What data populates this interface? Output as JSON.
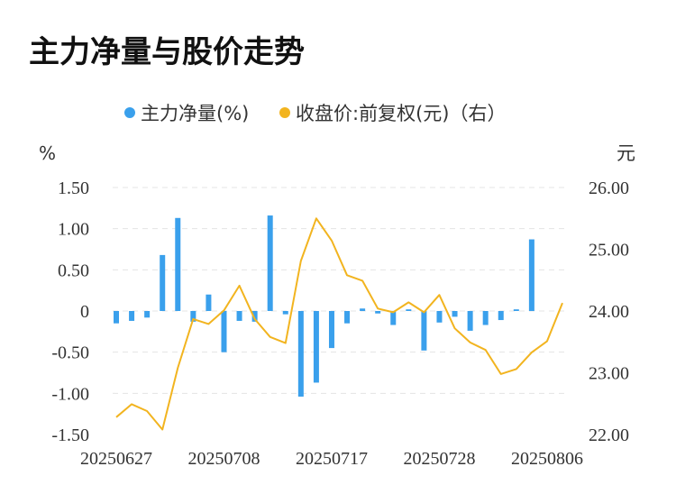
{
  "chart_data": {
    "type": "bar+line",
    "title": "主力净量与股价走势",
    "legend": {
      "placement": "top-center",
      "items": [
        {
          "label": "主力净量(%)",
          "color": "#3aa0ec"
        },
        {
          "label": "收盘价:前复权(元)（右）",
          "color": "#f2b41f"
        }
      ]
    },
    "left_axis": {
      "unit": "%",
      "ticks": [
        "1.50",
        "1.00",
        "0.50",
        "0",
        "-0.50",
        "-1.00",
        "-1.50"
      ],
      "ylim": [
        -1.5,
        1.5
      ]
    },
    "right_axis": {
      "unit": "元",
      "ticks": [
        "26.00",
        "25.00",
        "24.00",
        "23.00",
        "22.00"
      ],
      "ylim": [
        22.0,
        26.0
      ]
    },
    "x_tick_labels": [
      "20250627",
      "20250708",
      "20250717",
      "20250728",
      "20250806"
    ],
    "x_tick_indices": [
      0,
      7,
      14,
      21,
      28
    ],
    "series": [
      {
        "name": "主力净量(%)",
        "type": "bar",
        "color": "#3aa0ec",
        "values": [
          -0.15,
          -0.12,
          -0.08,
          0.68,
          1.13,
          -0.13,
          0.2,
          -0.5,
          -0.12,
          -0.13,
          1.16,
          -0.04,
          -1.04,
          -0.87,
          -0.45,
          -0.15,
          0.03,
          -0.03,
          -0.17,
          0.02,
          -0.48,
          -0.14,
          -0.07,
          -0.24,
          -0.17,
          -0.11,
          0.02,
          0.87
        ]
      },
      {
        "name": "收盘价:前复权(元)（右）",
        "type": "line",
        "color": "#f2b41f",
        "values": [
          22.28,
          22.49,
          22.38,
          22.08,
          23.08,
          23.87,
          23.79,
          24.01,
          24.41,
          23.87,
          23.58,
          23.48,
          24.81,
          25.5,
          25.14,
          24.58,
          24.49,
          24.04,
          23.98,
          24.14,
          23.98,
          24.26,
          23.72,
          23.49,
          23.37,
          22.98,
          23.06,
          23.33,
          23.51,
          24.13
        ]
      }
    ]
  }
}
